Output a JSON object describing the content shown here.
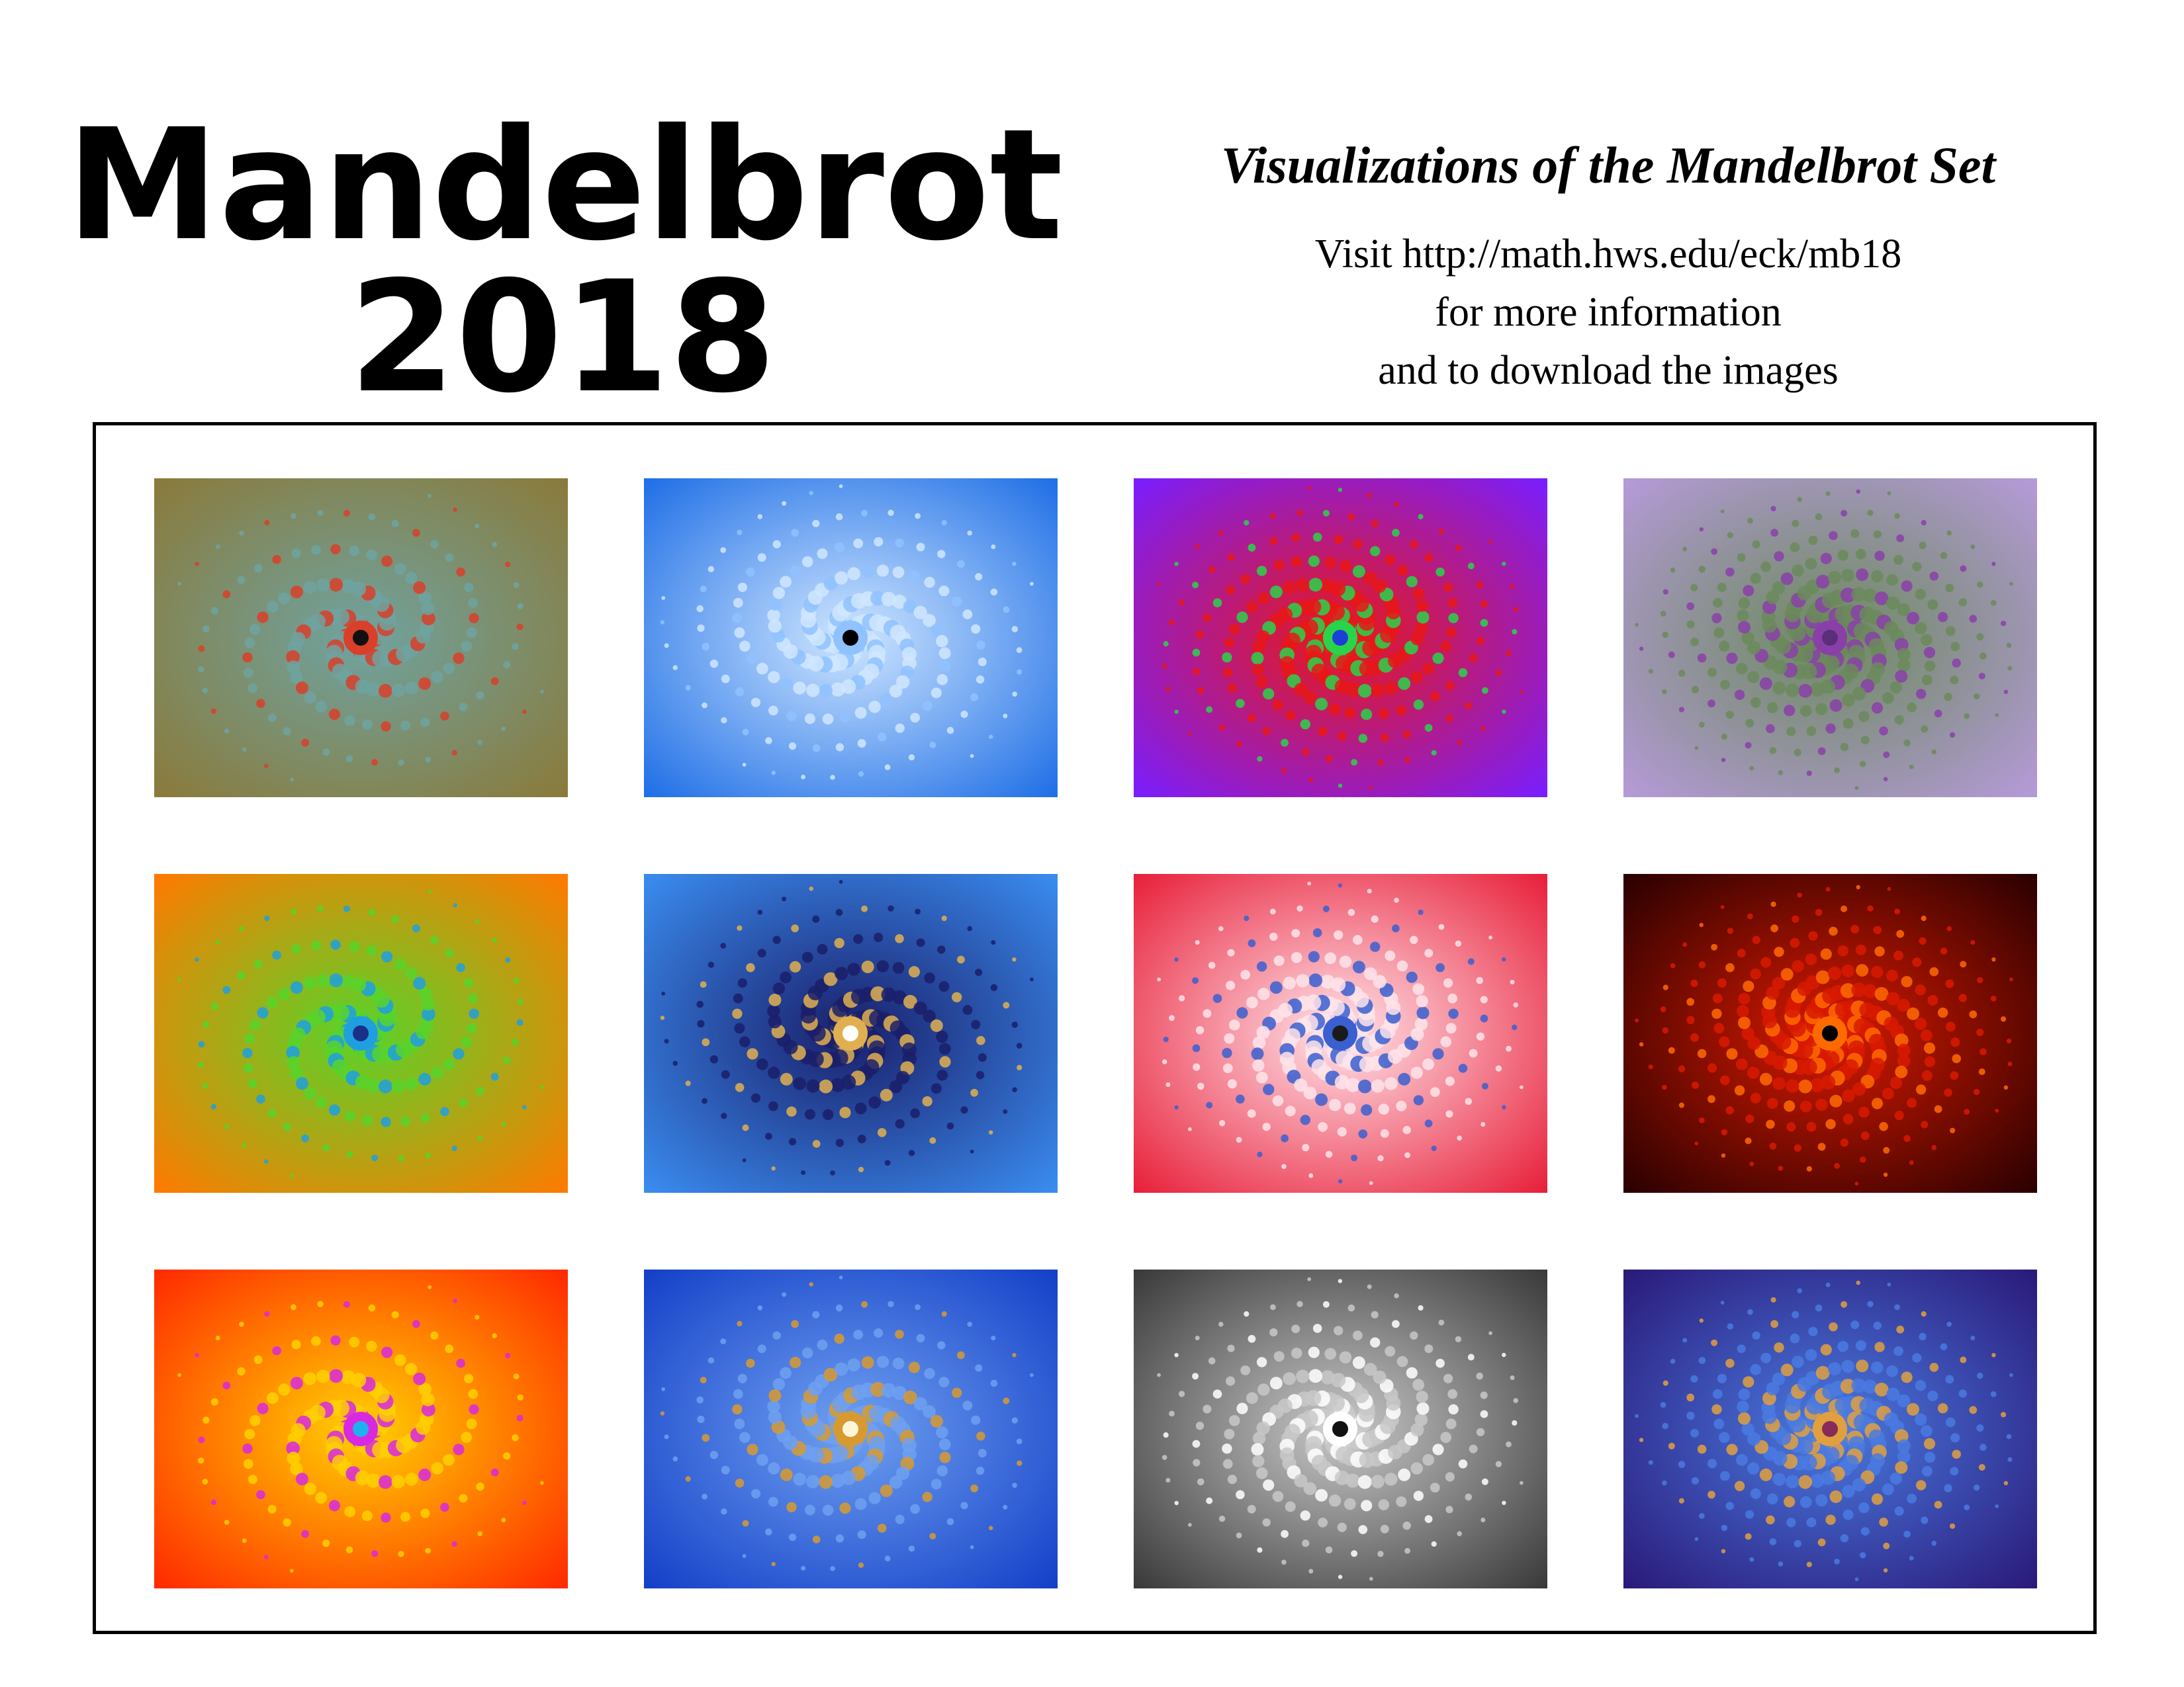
{
  "header": {
    "title_line1": "Mandelbrot",
    "title_line2": "2018",
    "subtitle": "Visualizations of the Mandelbrot  Set",
    "info_lines": [
      "Visit http://math.hws.edu/eck/mb18",
      "for more information",
      "and to download the images"
    ]
  },
  "gallery": {
    "rows": 3,
    "columns": 4,
    "images": [
      {
        "name": "fractal-olive-spiral",
        "colors": {
          "bg": "#8a7a3a",
          "accent": "#6fa3a0",
          "detail": "#d8402a",
          "center": "#111111"
        }
      },
      {
        "name": "fractal-blue-seahorse",
        "colors": {
          "bg": "#1f6fe6",
          "accent": "#cfe6ff",
          "detail": "#8fc2ff",
          "center": "#000000"
        }
      },
      {
        "name": "fractal-purple-red-rainbow",
        "colors": {
          "bg": "#7a1eff",
          "accent": "#e81818",
          "detail": "#29d44a",
          "center": "#1d3fd8"
        }
      },
      {
        "name": "fractal-lavender-spiral",
        "colors": {
          "bg": "#b59ad8",
          "accent": "#6b8a5c",
          "detail": "#8a3fa8",
          "center": "#5a2f7a"
        }
      },
      {
        "name": "fractal-orange-green",
        "colors": {
          "bg": "#ff7a00",
          "accent": "#58d42a",
          "detail": "#1f9fe0",
          "center": "#1a2f8a"
        }
      },
      {
        "name": "fractal-blue-filament",
        "colors": {
          "bg": "#3a8cf0",
          "accent": "#1a1f6a",
          "detail": "#e0b050",
          "center": "#ffffff"
        }
      },
      {
        "name": "fractal-red-white-blue",
        "colors": {
          "bg": "#e8203a",
          "accent": "#ffe4ea",
          "detail": "#3a5fd0",
          "center": "#1a1a1a"
        }
      },
      {
        "name": "fractal-dark-red-bulb",
        "colors": {
          "bg": "#2a0000",
          "accent": "#d81a00",
          "detail": "#ff6a00",
          "center": "#000000"
        }
      },
      {
        "name": "fractal-red-rainbow",
        "colors": {
          "bg": "#ff2a00",
          "accent": "#ffd000",
          "detail": "#d828e0",
          "center": "#1fb0f0"
        }
      },
      {
        "name": "fractal-blue-gold-swirl",
        "colors": {
          "bg": "#1440c8",
          "accent": "#6ea0f0",
          "detail": "#d89a30",
          "center": "#fff6d8"
        }
      },
      {
        "name": "fractal-grey-spiral",
        "colors": {
          "bg": "#3a3a3a",
          "accent": "#c8c8c8",
          "detail": "#ffffff",
          "center": "#111111"
        }
      },
      {
        "name": "fractal-navy-gold",
        "colors": {
          "bg": "#2a1a7a",
          "accent": "#4a7ae0",
          "detail": "#e0a040",
          "center": "#8a2a5a"
        }
      }
    ]
  }
}
